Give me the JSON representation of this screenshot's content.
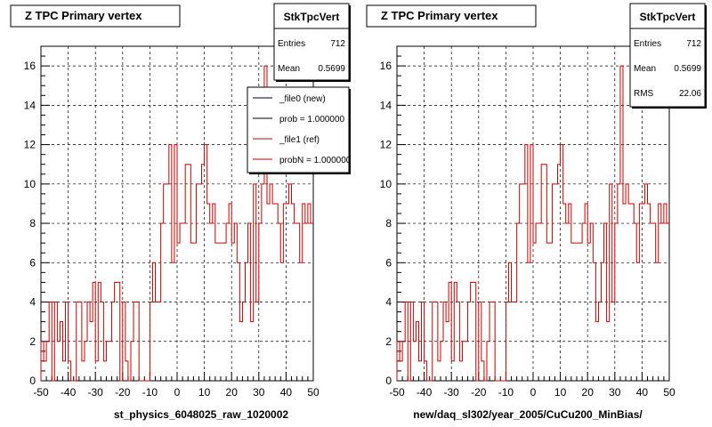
{
  "chart_data": [
    {
      "type": "step",
      "title": "Z TPC Primary vertex",
      "xlabel": "st_physics_6048025_raw_1020002",
      "ylabel": "",
      "xlim": [
        -50,
        50
      ],
      "ylim": [
        0,
        17
      ],
      "x_ticks": [
        "-50",
        "-40",
        "-30",
        "-20",
        "-10",
        "0",
        "10",
        "20",
        "30",
        "40",
        "50"
      ],
      "y_ticks": [
        "0",
        "2",
        "4",
        "6",
        "8",
        "10",
        "12",
        "14",
        "16"
      ],
      "grid": true,
      "bin_edges_start": -50,
      "bin_width": 1,
      "series": [
        {
          "color": "#cc0000",
          "values": [
            2,
            1,
            2,
            4,
            0,
            4,
            2,
            3,
            1,
            4,
            1,
            0,
            0,
            4,
            4,
            1,
            2,
            4,
            3,
            5,
            1,
            5,
            4,
            1,
            2,
            2,
            4,
            5,
            5,
            0,
            4,
            1,
            0,
            2,
            4,
            4,
            0,
            0,
            0,
            0,
            4,
            6,
            4,
            4,
            8,
            10,
            10,
            12,
            6,
            12,
            7,
            8,
            8,
            11,
            11,
            7,
            7,
            10,
            10,
            11,
            12,
            9,
            8,
            9,
            7,
            7,
            7,
            7,
            8,
            9,
            7,
            8,
            6,
            3,
            4,
            6,
            8,
            3,
            10,
            4,
            8,
            10,
            16,
            9,
            10,
            9,
            9,
            8,
            6,
            9,
            9,
            10,
            9,
            8,
            8,
            6,
            9,
            8,
            9,
            8
          ]
        }
      ],
      "stats": {
        "name": "StkTpcVert",
        "rows": [
          {
            "label": "Entries",
            "value": "712"
          },
          {
            "label": "Mean",
            "value": "0.5699"
          }
        ]
      },
      "legend": {
        "placement": "top-right",
        "entries": [
          {
            "label": "_file0 (new)",
            "color": "#000000"
          },
          {
            "label": "prob = 1.000000",
            "color": "#000000"
          },
          {
            "label": "_file1 (ref)",
            "color": "#cc0000"
          },
          {
            "label": "probN = 1.000000",
            "color": "#cc0000"
          }
        ]
      }
    },
    {
      "type": "step",
      "title": "Z TPC Primary vertex",
      "xlabel": "new/daq_sl302/year_2005/CuCu200_MinBias/",
      "ylabel": "",
      "xlim": [
        -50,
        50
      ],
      "ylim": [
        0,
        17
      ],
      "x_ticks": [
        "-50",
        "-40",
        "-30",
        "-20",
        "-10",
        "0",
        "10",
        "20",
        "30",
        "40",
        "50"
      ],
      "y_ticks": [
        "0",
        "2",
        "4",
        "6",
        "8",
        "10",
        "12",
        "14",
        "16"
      ],
      "grid": true,
      "bin_edges_start": -50,
      "bin_width": 1,
      "series": [
        {
          "color": "#cc0000",
          "values": [
            2,
            1,
            2,
            4,
            0,
            4,
            2,
            3,
            1,
            4,
            1,
            0,
            0,
            4,
            4,
            1,
            2,
            4,
            3,
            5,
            1,
            5,
            4,
            1,
            2,
            2,
            4,
            5,
            5,
            0,
            4,
            1,
            0,
            2,
            4,
            4,
            0,
            0,
            0,
            0,
            4,
            6,
            4,
            4,
            8,
            10,
            10,
            12,
            6,
            12,
            7,
            8,
            8,
            11,
            11,
            7,
            7,
            10,
            10,
            11,
            12,
            9,
            8,
            9,
            7,
            7,
            7,
            7,
            8,
            9,
            7,
            8,
            6,
            3,
            4,
            6,
            8,
            3,
            10,
            4,
            8,
            10,
            16,
            9,
            10,
            9,
            9,
            8,
            6,
            9,
            9,
            10,
            9,
            8,
            8,
            6,
            9,
            8,
            9,
            8
          ]
        }
      ],
      "stats": {
        "name": "StkTpcVert",
        "rows": [
          {
            "label": "Entries",
            "value": "712"
          },
          {
            "label": "Mean",
            "value": "0.5699"
          },
          {
            "label": "RMS",
            "value": "22.06"
          }
        ]
      }
    }
  ]
}
